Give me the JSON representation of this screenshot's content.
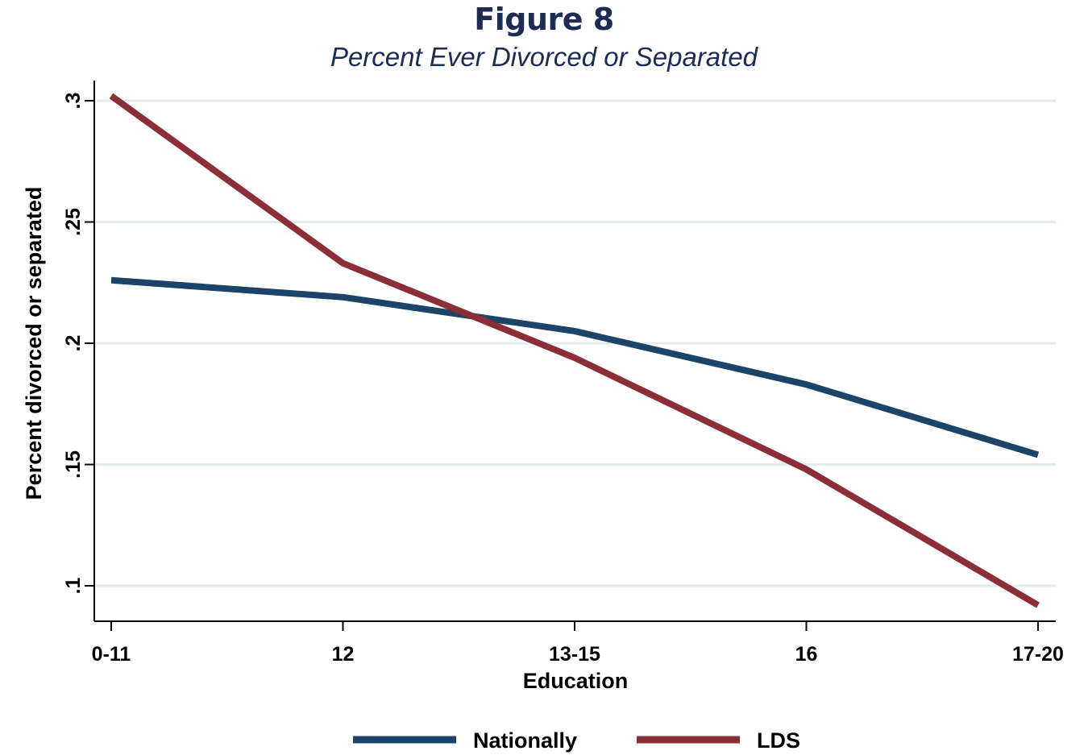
{
  "chart_data": {
    "type": "line",
    "title": "Figure 8",
    "subtitle": "Percent Ever Divorced or Separated",
    "xlabel": "Education",
    "ylabel": "Percent divorced or separated",
    "categories": [
      "0-11",
      "12",
      "13-15",
      "16",
      "17-20"
    ],
    "yticks": [
      ".1",
      ".15",
      ".2",
      ".25",
      ".3"
    ],
    "ytick_values": [
      0.1,
      0.15,
      0.2,
      0.25,
      0.3
    ],
    "ylim": [
      0.085,
      0.31
    ],
    "grid": true,
    "legend_position": "bottom",
    "series": [
      {
        "name": "Nationally",
        "color": "#1b4468",
        "values": [
          0.226,
          0.219,
          0.205,
          0.183,
          0.154
        ]
      },
      {
        "name": "LDS",
        "color": "#8b2e38",
        "values": [
          0.302,
          0.233,
          0.194,
          0.148,
          0.092
        ]
      }
    ]
  }
}
